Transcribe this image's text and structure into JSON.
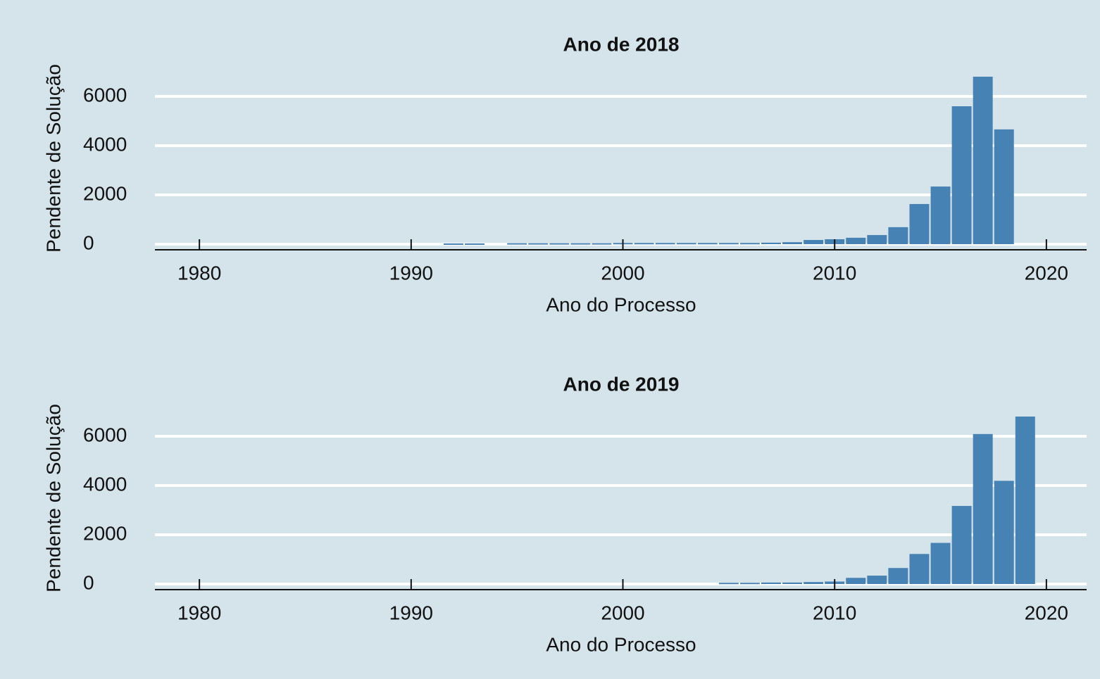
{
  "chart_data": [
    {
      "type": "bar",
      "title": "Ano de 2018",
      "x_label": "Ano do Processo",
      "y_label": "Pendente de Solução",
      "x": [
        1992,
        1993,
        1995,
        1996,
        1997,
        1998,
        1999,
        2000,
        2001,
        2002,
        2003,
        2004,
        2005,
        2006,
        2007,
        2008,
        2009,
        2010,
        2011,
        2012,
        2013,
        2014,
        2015,
        2016,
        2017,
        2018
      ],
      "values": [
        30,
        30,
        40,
        40,
        40,
        40,
        40,
        50,
        50,
        50,
        50,
        50,
        50,
        50,
        60,
        80,
        170,
        200,
        260,
        370,
        690,
        1630,
        2340,
        5600,
        6800,
        4660
      ],
      "color": "#4682b4",
      "xlim": [
        1977.9,
        2021.9
      ],
      "xticks": [
        1980,
        1990,
        2000,
        2010,
        2020
      ],
      "ylim": [
        0,
        7000
      ],
      "yticks": [
        0,
        2000,
        4000,
        6000
      ],
      "grid": true
    },
    {
      "type": "bar",
      "title": "Ano de 2019",
      "x_label": "Ano do Processo",
      "y_label": "Pendente de Solução",
      "x": [
        2005,
        2006,
        2007,
        2008,
        2009,
        2010,
        2011,
        2012,
        2013,
        2014,
        2015,
        2016,
        2017,
        2018,
        2019
      ],
      "values": [
        50,
        50,
        60,
        60,
        80,
        100,
        250,
        340,
        650,
        1220,
        1670,
        3170,
        6090,
        4190,
        6800
      ],
      "color": "#4682b4",
      "xlim": [
        1977.9,
        2021.9
      ],
      "xticks": [
        1980,
        1990,
        2000,
        2010,
        2020
      ],
      "ylim": [
        0,
        7000
      ],
      "yticks": [
        0,
        2000,
        4000,
        6000
      ],
      "grid": true
    }
  ]
}
